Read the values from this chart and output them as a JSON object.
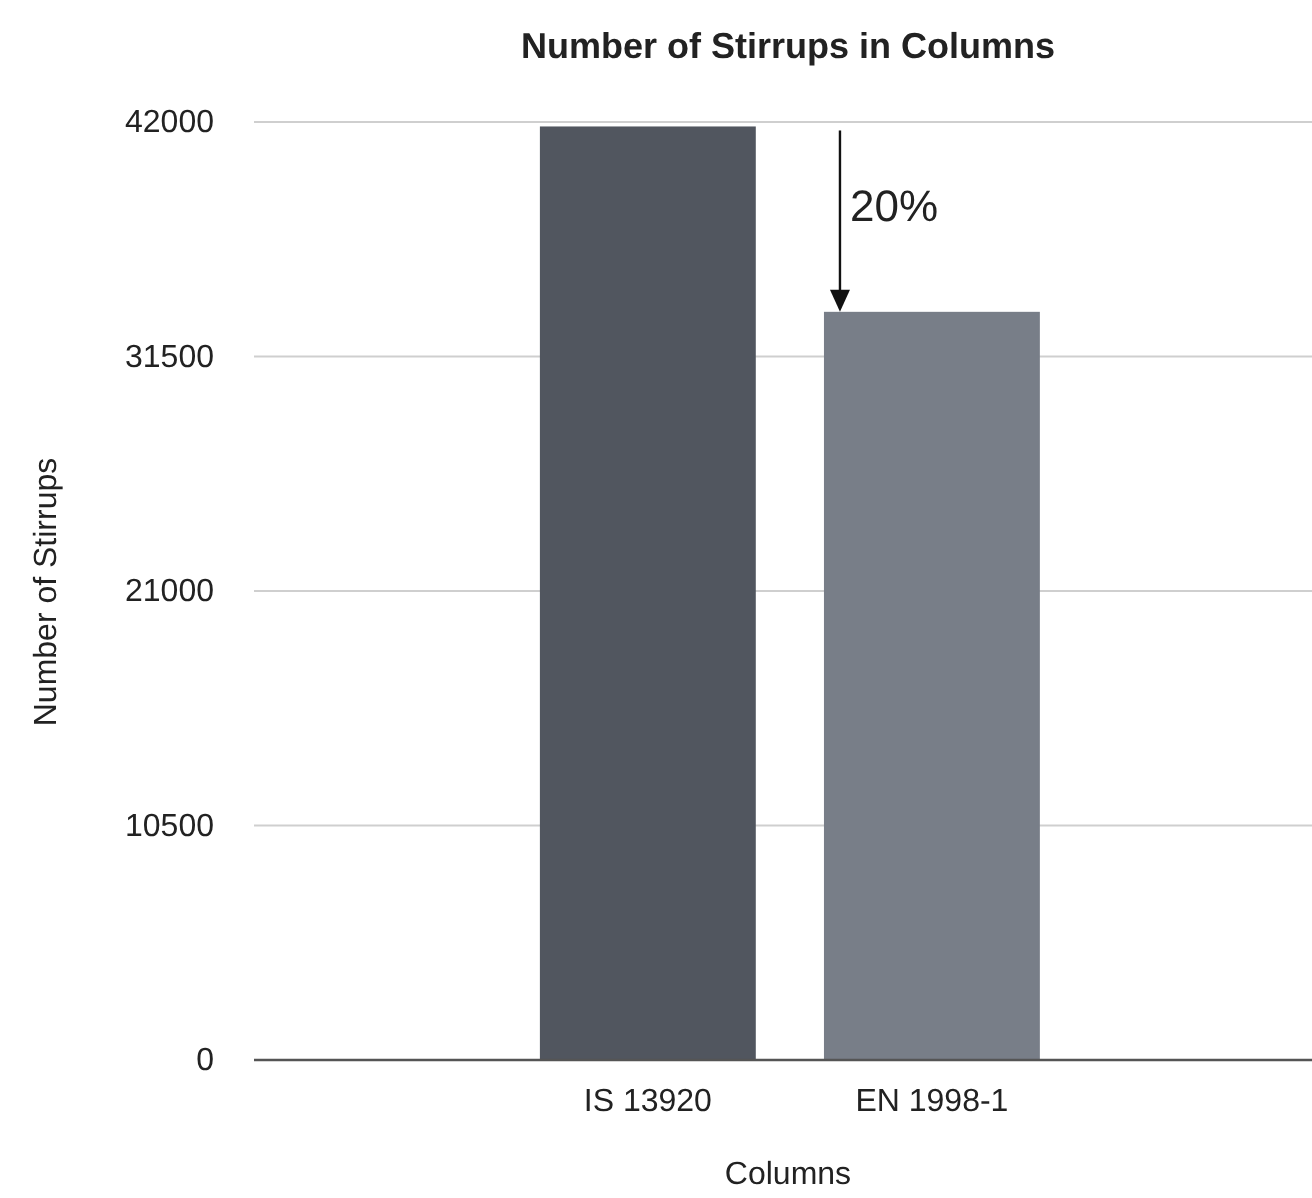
{
  "chart_data": {
    "type": "bar",
    "title": "Number of Stirrups in Columns",
    "xlabel": "Columns",
    "ylabel": "Number of Stirrups",
    "categories": [
      "IS 13920",
      "EN 1998-1"
    ],
    "values": [
      41800,
      33500
    ],
    "colors": [
      "#51565f",
      "#787e88"
    ],
    "ylim": [
      0,
      42000
    ],
    "yticks": [
      0,
      10500,
      21000,
      31500,
      42000
    ],
    "grid": "y",
    "annotations": [
      {
        "text": "20%",
        "x": "EN 1998-1",
        "y": 33500
      }
    ]
  }
}
